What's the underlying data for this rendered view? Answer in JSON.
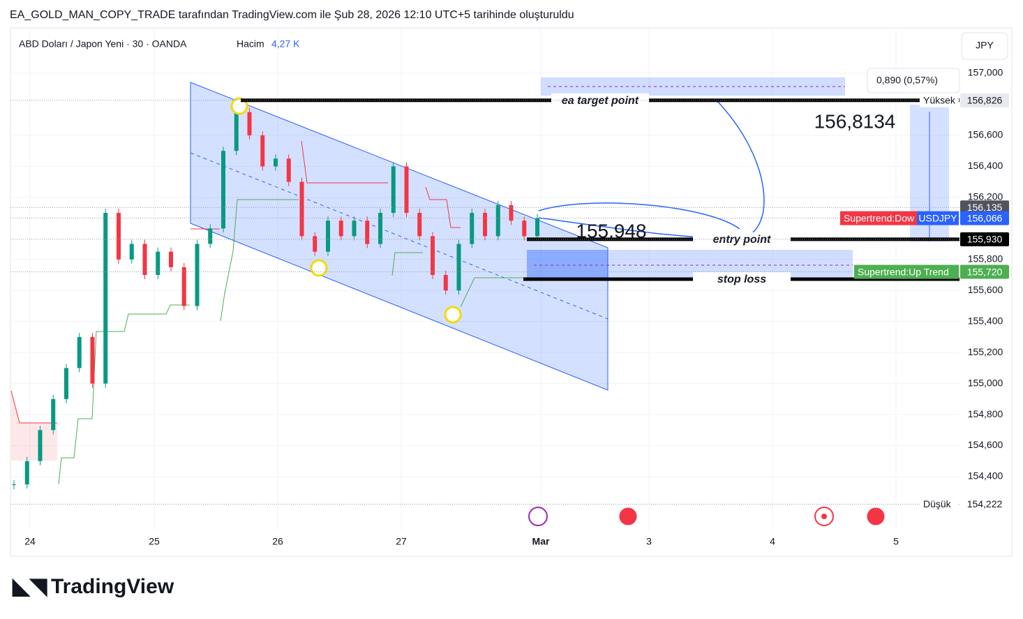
{
  "header": "EA_GOLD_MAN_COPY_TRADE tarafından TradingView.com ile Şub 28, 2026 12:10 UTC+5 tarihinde oluşturuldu",
  "brand": "TradingView",
  "chart_data": {
    "type": "candlestick",
    "symbol": "ABD Doları / Japon Yeni · 30 · OANDA",
    "volume_label": "Hacim",
    "volume": {
      "value": 4270,
      "label": "4,27 K"
    },
    "currency": "JPY",
    "categories": [
      "24",
      "25",
      "26",
      "27",
      "Mar",
      "3",
      "4",
      "5"
    ],
    "closes": [
      154.35,
      154.5,
      154.7,
      154.9,
      155.1,
      155.3,
      155.0,
      156.1,
      155.8,
      155.9,
      155.7,
      155.85,
      155.75,
      155.5,
      155.9,
      156.0,
      156.5,
      156.75,
      156.6,
      156.4,
      156.45,
      156.3,
      155.95,
      155.85,
      156.05,
      155.95,
      156.05,
      155.9,
      156.1,
      156.4,
      156.1,
      155.95,
      155.7,
      155.6,
      155.9,
      156.1,
      155.95,
      156.15,
      156.05,
      155.95,
      156.066
    ],
    "up_color": "#089981",
    "down_color": "#f23645",
    "ylim": [
      154.076,
      157.288
    ],
    "yticks": [
      {
        "value": 154.4,
        "label": "154,400"
      },
      {
        "value": 154.6,
        "label": "154,600"
      },
      {
        "value": 154.8,
        "label": "154,800"
      },
      {
        "value": 155.0,
        "label": "155,000"
      },
      {
        "value": 155.2,
        "label": "155,200"
      },
      {
        "value": 155.4,
        "label": "155,400"
      },
      {
        "value": 155.6,
        "label": "155,600"
      },
      {
        "value": 155.8,
        "label": "155,800"
      },
      {
        "value": 156.2,
        "label": "156,200"
      },
      {
        "value": 156.4,
        "label": "156,400"
      },
      {
        "value": 156.6,
        "label": "156,600"
      },
      {
        "value": 157.0,
        "label": "157,000"
      }
    ],
    "grid": true,
    "levels": [
      {
        "name": "ea target point",
        "value": 156.826
      },
      {
        "name": "entry point",
        "value": 155.93
      },
      {
        "name": "stop loss",
        "value": 155.673
      }
    ],
    "annotations": {
      "entry": {
        "value": 155.948,
        "label": "155,948"
      },
      "target": {
        "value": 156.8134,
        "label": "156,8134"
      },
      "measure": "0,890 (0,57%)"
    },
    "badges": [
      {
        "name": "Yüksek",
        "value": 156.826,
        "label": "156,826",
        "color": "#e8eaf0"
      },
      {
        "value": 156.135,
        "label": "156,135",
        "color": "#50535e"
      },
      {
        "name": "Supertrend:Dow",
        "value": 156.066,
        "label": "156,066",
        "color": "#2962ff",
        "tag": "USDJPY"
      },
      {
        "value": 155.93,
        "label": "155,930",
        "color": "#000000"
      },
      {
        "name": "Supertrend:Up Trend",
        "value": 155.72,
        "label": "155,720",
        "color": "#4caf50"
      },
      {
        "name": "Düşük",
        "value": 154.222,
        "label": "154,222",
        "color": "#ffffff"
      }
    ]
  }
}
